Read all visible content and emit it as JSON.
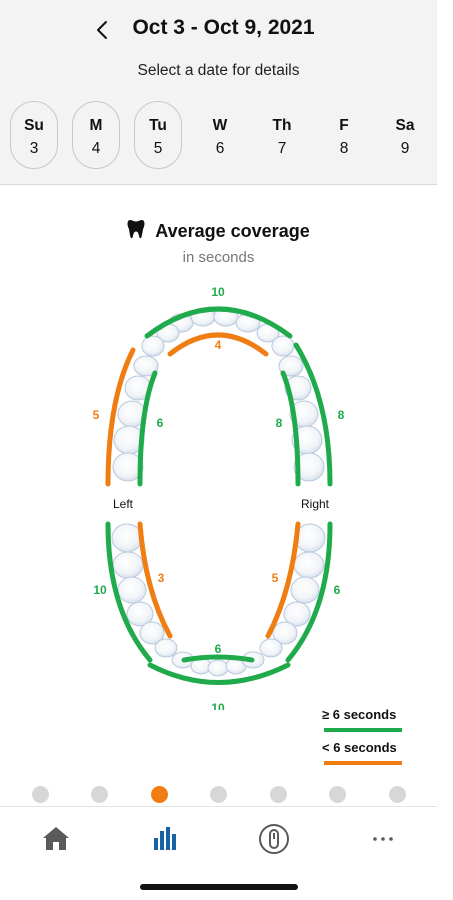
{
  "header": {
    "title": "Oct 3 - Oct 9, 2021",
    "subtitle": "Select a date for details",
    "back_icon": "chevron-left-icon"
  },
  "days": [
    {
      "name": "Su",
      "date": "3",
      "outlined": true
    },
    {
      "name": "M",
      "date": "4",
      "outlined": true
    },
    {
      "name": "Tu",
      "date": "5",
      "outlined": true
    },
    {
      "name": "W",
      "date": "6",
      "outlined": false
    },
    {
      "name": "Th",
      "date": "7",
      "outlined": false
    },
    {
      "name": "F",
      "date": "8",
      "outlined": false
    },
    {
      "name": "Sa",
      "date": "9",
      "outlined": false
    }
  ],
  "coverage": {
    "title": "Average coverage",
    "subtitle": "in seconds",
    "icon": "tooth-icon",
    "side_labels": {
      "left": "Left",
      "right": "Right"
    },
    "zones": {
      "upper_outer_front": "10",
      "upper_inner_front": "4",
      "upper_left_outer": "5",
      "upper_left_inner": "6",
      "upper_right_inner": "8",
      "upper_right_outer": "8",
      "lower_left_outer": "10",
      "lower_left_inner": "3",
      "lower_right_inner": "5",
      "lower_right_outer": "6",
      "lower_inner_front": "6",
      "lower_outer_front": "10"
    }
  },
  "legend": {
    "good": "≥ 6 seconds",
    "low": "< 6 seconds"
  },
  "colors": {
    "good": "#1faa4b",
    "low": "#f07d12",
    "active_dot": "#f07d12",
    "inactive_dot": "#d7d7d7",
    "nav_active": "#1763a8",
    "nav_inactive": "#5a5a5a"
  },
  "page_indicator": {
    "count": 7,
    "active_index": 2
  },
  "nav": [
    {
      "name": "home",
      "icon": "home-icon",
      "active": false
    },
    {
      "name": "insights",
      "icon": "bar-chart-icon",
      "active": true
    },
    {
      "name": "brush",
      "icon": "toothbrush-icon",
      "active": false
    },
    {
      "name": "more",
      "icon": "more-dots-icon",
      "active": false
    }
  ]
}
